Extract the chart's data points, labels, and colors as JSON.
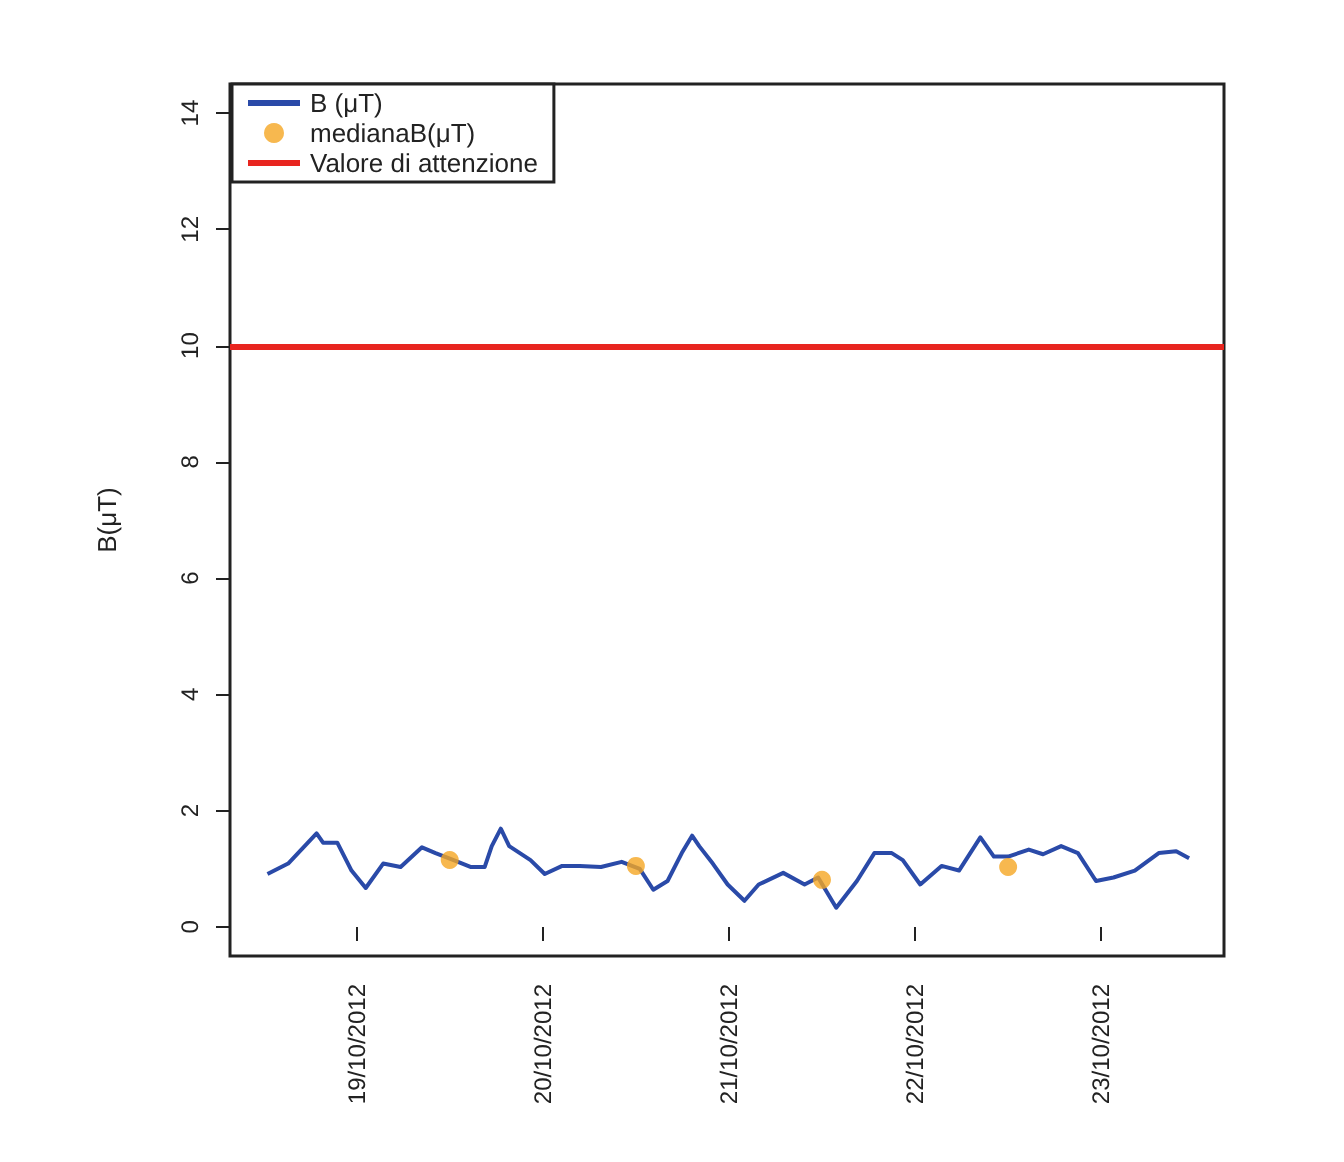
{
  "chart_data": {
    "type": "line",
    "ylabel": "B(μT)",
    "xlim": [
      "2012-10-18T07:40",
      "2012-10-23T15:50"
    ],
    "xticks": [
      {
        "value": "2012-10-19",
        "label": "19/10/2012"
      },
      {
        "value": "2012-10-20",
        "label": "20/10/2012"
      },
      {
        "value": "2012-10-21",
        "label": "21/10/2012"
      },
      {
        "value": "2012-10-22",
        "label": "22/10/2012"
      },
      {
        "value": "2012-10-23",
        "label": "23/10/2012"
      }
    ],
    "ylim": [
      -0.5,
      14.5
    ],
    "yticks": [
      0,
      2,
      4,
      6,
      8,
      10,
      12,
      14
    ],
    "grid": false,
    "legend": "top left",
    "series": [
      {
        "name": "B (μT)",
        "color": "#2a4aa8",
        "x": [
          "2012-10-18T12:30",
          "2012-10-18T15:10",
          "2012-10-18T18:50",
          "2012-10-18T19:40",
          "2012-10-18T21:30",
          "2012-10-18T23:20",
          "2012-10-19T01:10",
          "2012-10-19T03:25",
          "2012-10-19T05:40",
          "2012-10-19T08:25",
          "2012-10-19T10:10",
          "2012-10-19T12:30",
          "2012-10-19T14:45",
          "2012-10-19T16:30",
          "2012-10-19T17:25",
          "2012-10-19T18:35",
          "2012-10-19T19:40",
          "2012-10-19T22:25",
          "2012-10-20T00:15",
          "2012-10-20T02:30",
          "2012-10-20T04:45",
          "2012-10-20T07:30",
          "2012-10-20T10:10",
          "2012-10-20T12:30",
          "2012-10-20T14:15",
          "2012-10-20T16:05",
          "2012-10-20T17:55",
          "2012-10-20T19:15",
          "2012-10-20T20:10",
          "2012-10-20T21:55",
          "2012-10-20T23:50",
          "2012-10-21T02:00",
          "2012-10-21T03:50",
          "2012-10-21T07:00",
          "2012-10-21T09:45",
          "2012-10-21T11:30",
          "2012-10-21T13:50",
          "2012-10-21T16:30",
          "2012-10-21T18:45",
          "2012-10-21T21:00",
          "2012-10-21T22:25",
          "2012-10-22T00:40",
          "2012-10-22T03:25",
          "2012-10-22T05:40",
          "2012-10-22T08:25",
          "2012-10-22T10:10",
          "2012-10-22T12:00",
          "2012-10-22T14:40",
          "2012-10-22T16:30",
          "2012-10-22T18:50",
          "2012-10-22T21:00",
          "2012-10-22T23:20",
          "2012-10-23T01:35",
          "2012-10-23T04:20",
          "2012-10-23T07:25",
          "2012-10-23T09:40",
          "2012-10-23T11:20"
        ],
        "values": [
          0.91,
          1.09,
          1.61,
          1.45,
          1.45,
          0.97,
          0.67,
          1.09,
          1.03,
          1.37,
          1.27,
          1.15,
          1.03,
          1.03,
          1.39,
          1.69,
          1.39,
          1.15,
          0.91,
          1.05,
          1.05,
          1.03,
          1.12,
          1.0,
          0.64,
          0.79,
          1.27,
          1.57,
          1.39,
          1.09,
          0.73,
          0.45,
          0.73,
          0.93,
          0.73,
          0.85,
          0.33,
          0.79,
          1.27,
          1.27,
          1.15,
          0.73,
          1.05,
          0.97,
          1.54,
          1.21,
          1.21,
          1.33,
          1.25,
          1.39,
          1.27,
          0.79,
          0.85,
          0.97,
          1.27,
          1.3,
          1.18
        ]
      },
      {
        "name": "medianaB(μT)",
        "type": "scatter",
        "color": "#f5a623",
        "marker": "circle",
        "x": [
          "2012-10-19T12:00",
          "2012-10-20T12:00",
          "2012-10-21T12:00",
          "2012-10-22T12:00"
        ],
        "values": [
          1.15,
          1.05,
          0.81,
          1.03
        ]
      }
    ],
    "ref_lines": [
      {
        "axis": "y",
        "value": 10,
        "label": "Valore di attenzione",
        "color": "#e8251f",
        "line_style": "solid"
      }
    ]
  }
}
